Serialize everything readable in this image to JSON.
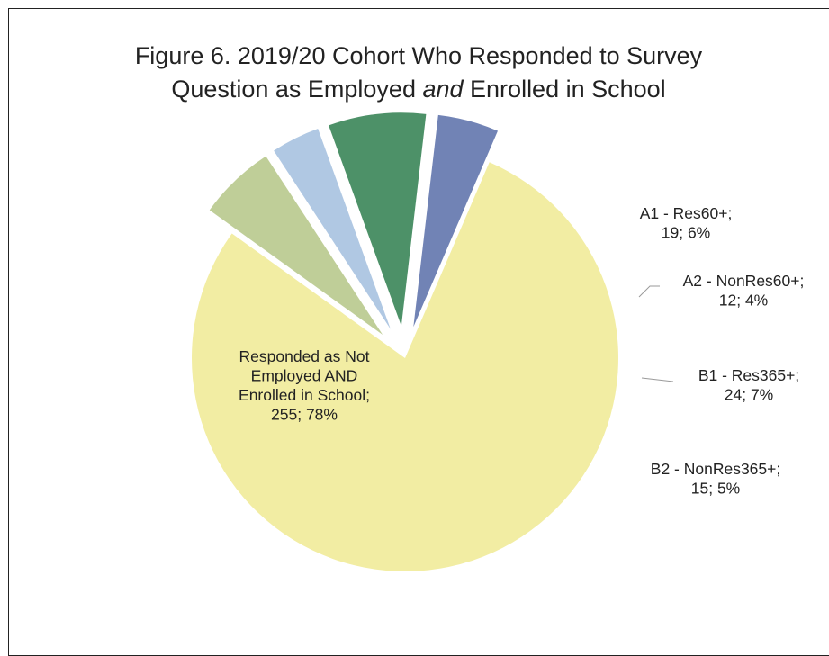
{
  "chart_data": {
    "type": "pie",
    "title": {
      "line1": "Figure 6. 2019/20 Cohort Who Responded to Survey",
      "line2_before": "Question as Employed ",
      "line2_emphasis": "and",
      "line2_after": " Enrolled in School"
    },
    "slices": [
      {
        "name": "A1 - Res60+;",
        "count": 19,
        "percent": 6,
        "value_text": "19; 6%",
        "color": "#bfce98",
        "exploded": true,
        "label_lines": [
          "A1 - Res60+;",
          "19; 6%"
        ]
      },
      {
        "name": "A2 - NonRes60+;",
        "count": 12,
        "percent": 4,
        "value_text": "12; 4%",
        "color": "#b0c8e3",
        "exploded": true,
        "label_lines": [
          "A2 - NonRes60+;",
          "12; 4%"
        ]
      },
      {
        "name": "B1 - Res365+;",
        "count": 24,
        "percent": 7,
        "value_text": "24; 7%",
        "color": "#4d9168",
        "exploded": true,
        "label_lines": [
          "B1 - Res365+;",
          "24; 7%"
        ]
      },
      {
        "name": "B2 - NonRes365+;",
        "count": 15,
        "percent": 5,
        "value_text": "15; 5%",
        "color": "#7183b5",
        "exploded": true,
        "label_lines": [
          "B2 - NonRes365+;",
          "15; 5%"
        ]
      },
      {
        "name": "Responded as Not Employed AND Enrolled in School;",
        "count": 255,
        "percent": 78,
        "value_text": "255; 78%",
        "color": "#f2eda3",
        "exploded": false,
        "label_lines": [
          "Responded as Not",
          "Employed AND",
          "Enrolled in School;",
          "255; 78%"
        ]
      }
    ],
    "legend": "none",
    "data_labels": "outside for small slices, inside for largest slice"
  }
}
